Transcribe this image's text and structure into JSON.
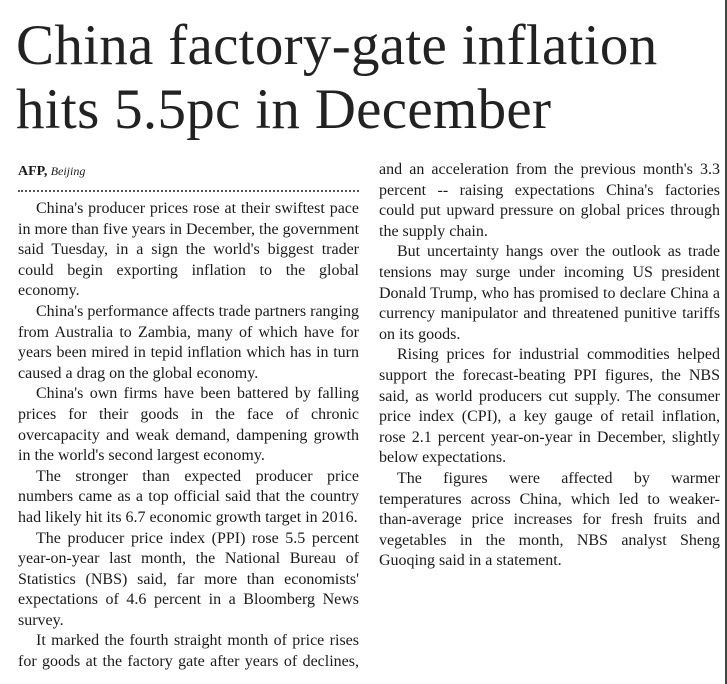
{
  "headline": "China factory-gate inflation hits 5.5pc in December",
  "byline": {
    "agency": "AFP,",
    "location": "Beijing"
  },
  "paragraphs": [
    "China's producer prices rose at their swiftest pace in more than five years in December, the government said Tuesday, in a sign the world's biggest trader could begin exporting inflation to the global economy.",
    "China's performance affects trade partners ranging from Australia to Zambia, many of which have for years been mired in tepid inflation which has in turn caused a drag on the global economy.",
    "China's own firms have been battered by falling prices for their goods in the face of chronic overcapacity and weak demand, dampening growth in the world's second largest economy.",
    "The stronger than expected producer price numbers came as a top official said that the country had likely hit its 6.7 economic growth target in 2016.",
    "The producer price index (PPI) rose 5.5 percent year-on-year last month, the National Bureau of Statistics (NBS) said, far more than economists' expectations of 4.6 percent in a Bloomberg News survey.",
    "It marked the fourth straight month of price rises for goods at the factory gate after years of declines, and an acceleration from the previous month's 3.3 percent -- raising expectations China's factories could put upward pressure on global prices through the supply chain.",
    "But uncertainty hangs over the outlook as trade tensions may surge under incoming US president Donald Trump, who has promised to declare China a currency manipulator and threatened punitive tariffs on its goods.",
    "Rising prices for industrial commodities helped support the forecast-beating PPI figures, the NBS said, as world producers cut supply. The consumer price index (CPI), a key gauge of retail inflation, rose 2.1 percent year-on-year in December, slightly below expectations.",
    "The figures were affected by warmer temperatures across China, which led to weaker-than-average price increases for fresh fruits and vegetables in the month, NBS analyst Sheng Guoqing said in a statement."
  ]
}
